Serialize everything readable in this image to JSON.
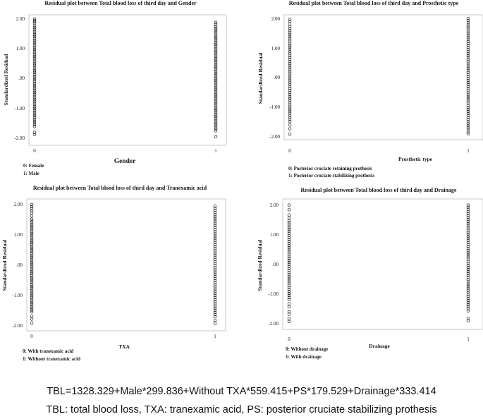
{
  "chart_data": [
    {
      "type": "scatter",
      "title": "Residual plot between Total blood loss of third day and Gender",
      "xlabel": "Gender",
      "ylabel": "Standardized Residual",
      "x_ticks": [
        "0",
        "1"
      ],
      "y_ticks": [
        "2.00",
        "1.00",
        ".00",
        "-1.00",
        "-2.00"
      ],
      "ylim": [
        -2.1,
        2.05
      ],
      "notes": [
        "0: Female",
        "1: Male"
      ],
      "series": [
        {
          "x": 0,
          "values": [
            1.98,
            1.93,
            1.88,
            1.82,
            1.75,
            1.69,
            1.63,
            1.57,
            1.51,
            1.45,
            1.39,
            1.33,
            1.27,
            1.21,
            1.15,
            1.09,
            1.03,
            0.97,
            0.91,
            0.85,
            0.79,
            0.73,
            0.67,
            0.61,
            0.55,
            0.49,
            0.43,
            0.37,
            0.31,
            0.25,
            0.19,
            0.13,
            0.07,
            0.01,
            -0.05,
            -0.11,
            -0.17,
            -0.23,
            -0.29,
            -0.35,
            -0.41,
            -0.47,
            -0.53,
            -0.59,
            -0.65,
            -0.71,
            -0.77,
            -0.83,
            -0.89,
            -0.95,
            -1.01,
            -1.07,
            -1.13,
            -1.19,
            -1.25,
            -1.31,
            -1.37,
            -1.43,
            -1.49,
            -1.55,
            -1.61,
            -1.8,
            -1.87
          ]
        },
        {
          "x": 1,
          "values": [
            1.86,
            1.8,
            1.73,
            1.67,
            1.61,
            1.55,
            1.49,
            1.43,
            1.37,
            1.31,
            1.25,
            1.19,
            1.13,
            1.07,
            1.01,
            0.95,
            0.89,
            0.83,
            0.77,
            0.71,
            0.65,
            0.59,
            0.53,
            0.47,
            0.41,
            0.35,
            0.29,
            0.23,
            0.17,
            0.11,
            0.05,
            -0.01,
            -0.07,
            -0.13,
            -0.19,
            -0.25,
            -0.31,
            -0.37,
            -0.43,
            -0.49,
            -0.55,
            -0.61,
            -0.67,
            -0.73,
            -0.79,
            -0.85,
            -0.91,
            -0.97,
            -1.03,
            -1.09,
            -1.15,
            -1.21,
            -1.27,
            -1.33,
            -1.39,
            -1.45,
            -1.51,
            -1.57,
            -1.63,
            -1.69,
            -1.75,
            -1.95
          ]
        }
      ]
    },
    {
      "type": "scatter",
      "title": "Residual plot between Total blood loss of third day and Prosthetic type",
      "xlabel": "Prosthetic type",
      "ylabel": "Standardized Residual",
      "x_ticks": [
        "0",
        "1"
      ],
      "y_ticks": [
        "2.00",
        "1.00",
        ".00",
        "-1.00",
        "-2.00"
      ],
      "ylim": [
        -2.1,
        2.05
      ],
      "notes": [
        "0: Posterior cruciate retaining prothesis",
        "1: Posterior cruciate stabilizing prothesis"
      ],
      "series": [
        {
          "x": 0,
          "values": [
            1.97,
            1.9,
            1.8,
            1.72,
            1.65,
            1.58,
            1.51,
            1.44,
            1.37,
            1.3,
            1.23,
            1.16,
            1.09,
            1.02,
            0.95,
            0.88,
            0.81,
            0.74,
            0.67,
            0.6,
            0.53,
            0.46,
            0.39,
            0.32,
            0.25,
            0.18,
            0.11,
            0.04,
            -0.03,
            -0.1,
            -0.17,
            -0.24,
            -0.31,
            -0.38,
            -0.45,
            -0.52,
            -0.59,
            -0.66,
            -0.73,
            -0.8,
            -0.87,
            -0.94,
            -1.01,
            -1.08,
            -1.15,
            -1.22,
            -1.29,
            -1.36,
            -1.43,
            -1.5,
            -1.62,
            -1.75,
            -1.93
          ]
        },
        {
          "x": 1,
          "values": [
            1.99,
            1.92,
            1.85,
            1.78,
            1.71,
            1.64,
            1.57,
            1.5,
            1.43,
            1.36,
            1.29,
            1.22,
            1.15,
            1.08,
            1.01,
            0.94,
            0.87,
            0.8,
            0.73,
            0.66,
            0.59,
            0.52,
            0.45,
            0.38,
            0.31,
            0.24,
            0.17,
            0.1,
            0.03,
            -0.04,
            -0.11,
            -0.18,
            -0.25,
            -0.32,
            -0.39,
            -0.46,
            -0.53,
            -0.6,
            -0.67,
            -0.74,
            -0.81,
            -0.88,
            -0.95,
            -1.02,
            -1.09,
            -1.16,
            -1.23,
            -1.3,
            -1.37,
            -1.44,
            -1.51,
            -1.58,
            -1.65,
            -1.72,
            -1.79,
            -1.86,
            -1.92
          ]
        }
      ]
    },
    {
      "type": "scatter",
      "title": "Residual plot between Total blood loss of third day and Tranexamic acid",
      "xlabel": "TXA",
      "ylabel": "Standardized Residual",
      "x_ticks": [
        "0",
        "1"
      ],
      "y_ticks": [
        "2.00",
        "1.00",
        ".00",
        "-1.00",
        "-2.00"
      ],
      "ylim": [
        -2.1,
        2.05
      ],
      "notes": [
        "0: With tranexamic acid",
        "1: Without tranexamic acid"
      ],
      "series": [
        {
          "x": 0,
          "values": [
            1.98,
            1.91,
            1.84,
            1.77,
            1.7,
            1.6,
            1.5,
            1.44,
            1.38,
            1.32,
            1.26,
            1.2,
            1.14,
            1.08,
            1.02,
            0.96,
            0.9,
            0.84,
            0.78,
            0.72,
            0.66,
            0.6,
            0.54,
            0.48,
            0.42,
            0.36,
            0.3,
            0.24,
            0.18,
            0.12,
            0.06,
            0.0,
            -0.06,
            -0.12,
            -0.18,
            -0.24,
            -0.3,
            -0.36,
            -0.42,
            -0.48,
            -0.54,
            -0.6,
            -0.66,
            -0.72,
            -0.78,
            -0.84,
            -0.9,
            -0.96,
            -1.02,
            -1.08,
            -1.14,
            -1.2,
            -1.26,
            -1.32,
            -1.38,
            -1.44,
            -1.5,
            -1.56,
            -1.7,
            -1.8,
            -1.93
          ]
        },
        {
          "x": 1,
          "values": [
            1.92,
            1.85,
            1.78,
            1.71,
            1.64,
            1.57,
            1.5,
            1.43,
            1.36,
            1.29,
            1.22,
            1.15,
            1.08,
            1.01,
            0.94,
            0.87,
            0.8,
            0.73,
            0.66,
            0.59,
            0.52,
            0.45,
            0.38,
            0.31,
            0.24,
            0.17,
            0.1,
            0.03,
            -0.04,
            -0.11,
            -0.18,
            -0.25,
            -0.32,
            -0.39,
            -0.46,
            -0.53,
            -0.6,
            -0.67,
            -0.74,
            -0.81,
            -0.88,
            -0.95,
            -1.02,
            -1.09,
            -1.16,
            -1.23,
            -1.3,
            -1.37,
            -1.44,
            -1.51,
            -1.58,
            -1.65,
            -1.72,
            -1.84,
            -1.94
          ]
        }
      ]
    },
    {
      "type": "scatter",
      "title": "Residual plot between Total blood loss of third day and Drainage",
      "xlabel": "Drainage",
      "ylabel": "Standardized Residual",
      "x_ticks": [
        "0",
        "1"
      ],
      "y_ticks": [
        "2.00",
        "1.00",
        ".00",
        "-1.00",
        "-2.00"
      ],
      "ylim": [
        -2.1,
        2.05
      ],
      "notes": [
        "0: Without drainage",
        "1: With drainage"
      ],
      "series": [
        {
          "x": 0,
          "values": [
            1.98,
            1.83,
            1.65,
            1.55,
            1.45,
            1.38,
            1.31,
            1.24,
            1.17,
            1.1,
            1.03,
            0.96,
            0.89,
            0.82,
            0.75,
            0.68,
            0.61,
            0.54,
            0.47,
            0.4,
            0.33,
            0.26,
            0.19,
            0.12,
            0.05,
            -0.02,
            -0.09,
            -0.16,
            -0.23,
            -0.3,
            -0.37,
            -0.44,
            -0.51,
            -0.58,
            -0.65,
            -0.72,
            -0.79,
            -0.86,
            -0.93,
            -1.0,
            -1.07,
            -1.14,
            -1.21,
            -1.35,
            -1.45,
            -1.62,
            -1.7,
            -1.85,
            -1.95
          ]
        },
        {
          "x": 1,
          "values": [
            1.98,
            1.91,
            1.84,
            1.77,
            1.7,
            1.63,
            1.56,
            1.49,
            1.42,
            1.35,
            1.28,
            1.21,
            1.14,
            1.07,
            1.0,
            0.93,
            0.86,
            0.79,
            0.72,
            0.65,
            0.58,
            0.51,
            0.44,
            0.37,
            0.3,
            0.23,
            0.16,
            0.09,
            0.02,
            -0.05,
            -0.12,
            -0.19,
            -0.26,
            -0.33,
            -0.4,
            -0.47,
            -0.54,
            -0.61,
            -0.68,
            -0.75,
            -0.82,
            -0.89,
            -0.96,
            -1.03,
            -1.1,
            -1.17,
            -1.24,
            -1.31,
            -1.38,
            -1.45,
            -1.52,
            -1.59,
            -1.84,
            -1.92
          ]
        }
      ]
    }
  ],
  "footer": {
    "formula": "TBL=1328.329+Male*299.836+Without TXA*559.415+PS*179.529+Drainage*333.414",
    "legend": "TBL: total blood loss, TXA: tranexamic acid, PS: posterior cruciate stabilizing prothesis"
  }
}
